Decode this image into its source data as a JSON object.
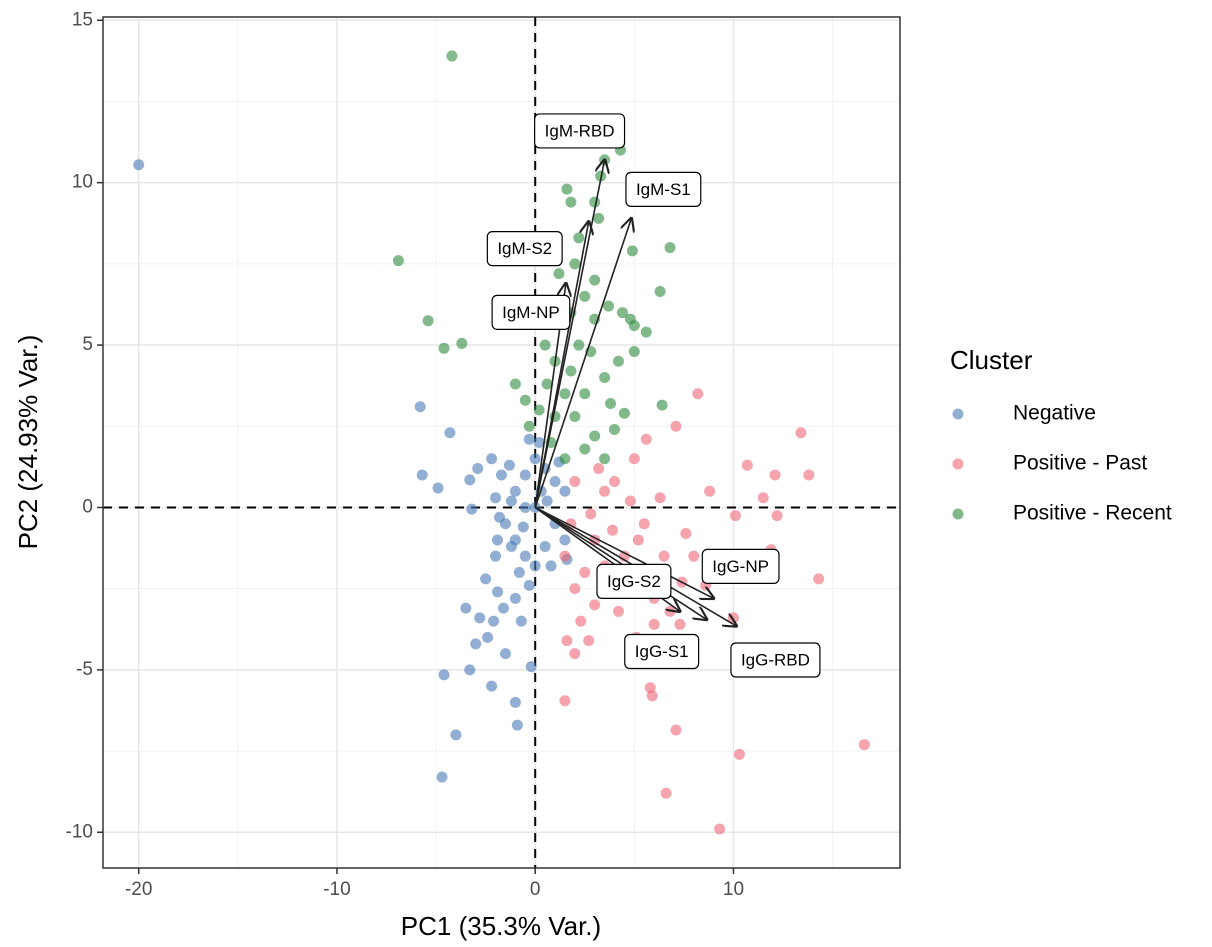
{
  "chart_data": {
    "type": "scatter",
    "x_label": "PC1 (35.3% Var.)",
    "y_label": "PC2 (24.93% Var.)",
    "xlim": [
      -21.8,
      18.4
    ],
    "ylim": [
      -11.1,
      15.1
    ],
    "xticks": [
      -20,
      -10,
      0,
      10
    ],
    "yticks": [
      -10,
      -5,
      0,
      5,
      10,
      15
    ],
    "x_minor_grid": [
      -15,
      -5,
      5,
      15
    ],
    "y_minor_grid": [
      -7.5,
      -2.5,
      2.5,
      7.5,
      12.5
    ],
    "reference_lines": {
      "x": 0,
      "y": 0
    },
    "grid": true,
    "legend_title": "Cluster",
    "legend_position": "right",
    "series": [
      {
        "name": "Negative",
        "color": "#4a7ab5",
        "x": [
          -20,
          -5.8,
          -4.3,
          -5.7,
          -3.3,
          -4.9,
          -2.2,
          -2.9,
          -1.7,
          -3.2,
          -2.0,
          -4.6,
          -4.7,
          -4.0,
          -3.3,
          -3.0,
          -3.5,
          -2.8,
          -2.4,
          -2.1,
          -1.9,
          -1.6,
          -1.0,
          -0.7,
          -1.5,
          -2.2,
          -1.0,
          -0.9,
          -0.2,
          -2.5,
          -0.3,
          -2.0,
          -1.2,
          -1,
          -0.5,
          0,
          0.5,
          1,
          1.5,
          -1.5,
          -1,
          -0.5,
          0,
          0.5,
          1,
          1.5,
          0,
          -0.5,
          0.3,
          -1.2,
          -1.8,
          -0.8,
          0.8,
          0.2,
          -0.3,
          1.2,
          -0.6,
          0.6,
          -1.3,
          1.6,
          -1.9
        ],
        "values": [
          10.55,
          3.1,
          2.3,
          1.0,
          0.85,
          0.6,
          1.5,
          1.2,
          1.0,
          -0.05,
          0.3,
          -5.15,
          -8.3,
          -7.0,
          -5.0,
          -4.2,
          -3.1,
          -3.4,
          -4.0,
          -3.5,
          -2.6,
          -3.1,
          -2.8,
          -3.5,
          -4.5,
          -5.5,
          -6.0,
          -6.7,
          -4.9,
          -2.2,
          -2.4,
          -1.5,
          -1.2,
          0.5,
          1,
          1.5,
          1.2,
          0.8,
          0.5,
          -0.5,
          -1,
          -1.5,
          -1.8,
          -1.2,
          -0.5,
          -1,
          0,
          0,
          0.5,
          0.2,
          -0.3,
          -2,
          -1.8,
          2.0,
          2.1,
          1.4,
          -0.6,
          0.2,
          1.3,
          -1.6,
          -1.0
        ]
      },
      {
        "name": "Positive - Past",
        "color": "#ee6677",
        "x": [
          5.6,
          7.1,
          8.2,
          10.7,
          12.1,
          13.4,
          13.8,
          11.5,
          12.2,
          10.1,
          11.9,
          14.3,
          16.6,
          10.3,
          9.3,
          6.6,
          7.1,
          5.8,
          5.9,
          1.5,
          2.0,
          1.6,
          2.7,
          5.1,
          7.3,
          6.0,
          10.0,
          8.0,
          6.5,
          5.5,
          4.5,
          3.5,
          3.0,
          2.5,
          2.0,
          4.0,
          5.0,
          4.5,
          6.0,
          3.0,
          2.0,
          1.5,
          3.5,
          5.2,
          6.3,
          7.6,
          7.4,
          8.6,
          4.2,
          2.8,
          1.8,
          3.2,
          4.8,
          6.8,
          9.6,
          8.8,
          3.9,
          2.3
        ],
        "values": [
          2.1,
          2.5,
          3.5,
          1.3,
          1.0,
          2.3,
          1.0,
          0.3,
          -0.25,
          -0.25,
          -1.3,
          -2.2,
          -7.3,
          -7.6,
          -9.9,
          -8.8,
          -6.85,
          -5.55,
          -5.8,
          -5.95,
          -4.5,
          -4.1,
          -4.1,
          -4.0,
          -3.6,
          -3.6,
          -3.4,
          -1.5,
          -1.5,
          -0.5,
          -1.5,
          0.5,
          -1.0,
          -2.0,
          0.8,
          0.8,
          1.5,
          -2.5,
          -2.8,
          -3.0,
          -2.5,
          -1.5,
          -1.8,
          -1.0,
          0.3,
          -0.8,
          -2.3,
          -2.4,
          -3.2,
          -0.2,
          -0.5,
          1.2,
          0.2,
          -3.2,
          -1.5,
          0.5,
          -0.7,
          -3.5
        ]
      },
      {
        "name": "Positive - Recent",
        "color": "#2e8b3e",
        "x": [
          -4.2,
          -6.9,
          -5.4,
          -4.6,
          -3.7,
          -1.0,
          1.6,
          1.8,
          3.3,
          3.5,
          4.3,
          3.0,
          3.2,
          4.9,
          6.8,
          6.3,
          4.4,
          4.8,
          5.0,
          5.6,
          5.0,
          6.4,
          4.5,
          3.0,
          2.0,
          1.5,
          1.0,
          0.5,
          0.2,
          -0.3,
          0.8,
          2.5,
          3.5,
          2.2,
          3.0,
          2.5,
          1.8,
          1.2,
          2.0,
          3.0,
          1.0,
          1.5,
          2.5,
          3.5,
          4.0,
          -0.5,
          0.6,
          1.8,
          2.8,
          3.8,
          4.2,
          2.2,
          0.9,
          3.7
        ],
        "values": [
          13.9,
          7.6,
          5.75,
          4.9,
          5.05,
          3.8,
          9.8,
          9.4,
          10.2,
          10.7,
          11.0,
          9.4,
          8.9,
          7.9,
          8.0,
          6.65,
          6.0,
          5.8,
          5.6,
          5.4,
          4.8,
          3.15,
          2.9,
          2.2,
          2.8,
          3.5,
          4.5,
          5.0,
          3.0,
          2.5,
          2.0,
          3.5,
          4.0,
          5.0,
          5.8,
          6.5,
          6.0,
          7.2,
          7.5,
          7.0,
          2.8,
          1.5,
          1.8,
          1.5,
          2.4,
          3.3,
          3.8,
          4.2,
          4.8,
          3.2,
          4.5,
          8.3,
          5.9,
          6.2
        ]
      }
    ],
    "loadings": [
      {
        "label": "IgM-RBD",
        "x": 3.5,
        "y": 10.7
      },
      {
        "label": "IgM-S1",
        "x": 4.85,
        "y": 8.9
      },
      {
        "label": "IgM-S2",
        "x": 2.7,
        "y": 8.8
      },
      {
        "label": "IgM-NP",
        "x": 1.55,
        "y": 6.9
      },
      {
        "label": "IgG-NP",
        "x": 9.0,
        "y": -2.8
      },
      {
        "label": "IgG-S2",
        "x": 7.3,
        "y": -3.2
      },
      {
        "label": "IgG-S1",
        "x": 8.65,
        "y": -3.45
      },
      {
        "label": "IgG-RBD",
        "x": 10.15,
        "y": -3.65
      }
    ]
  }
}
